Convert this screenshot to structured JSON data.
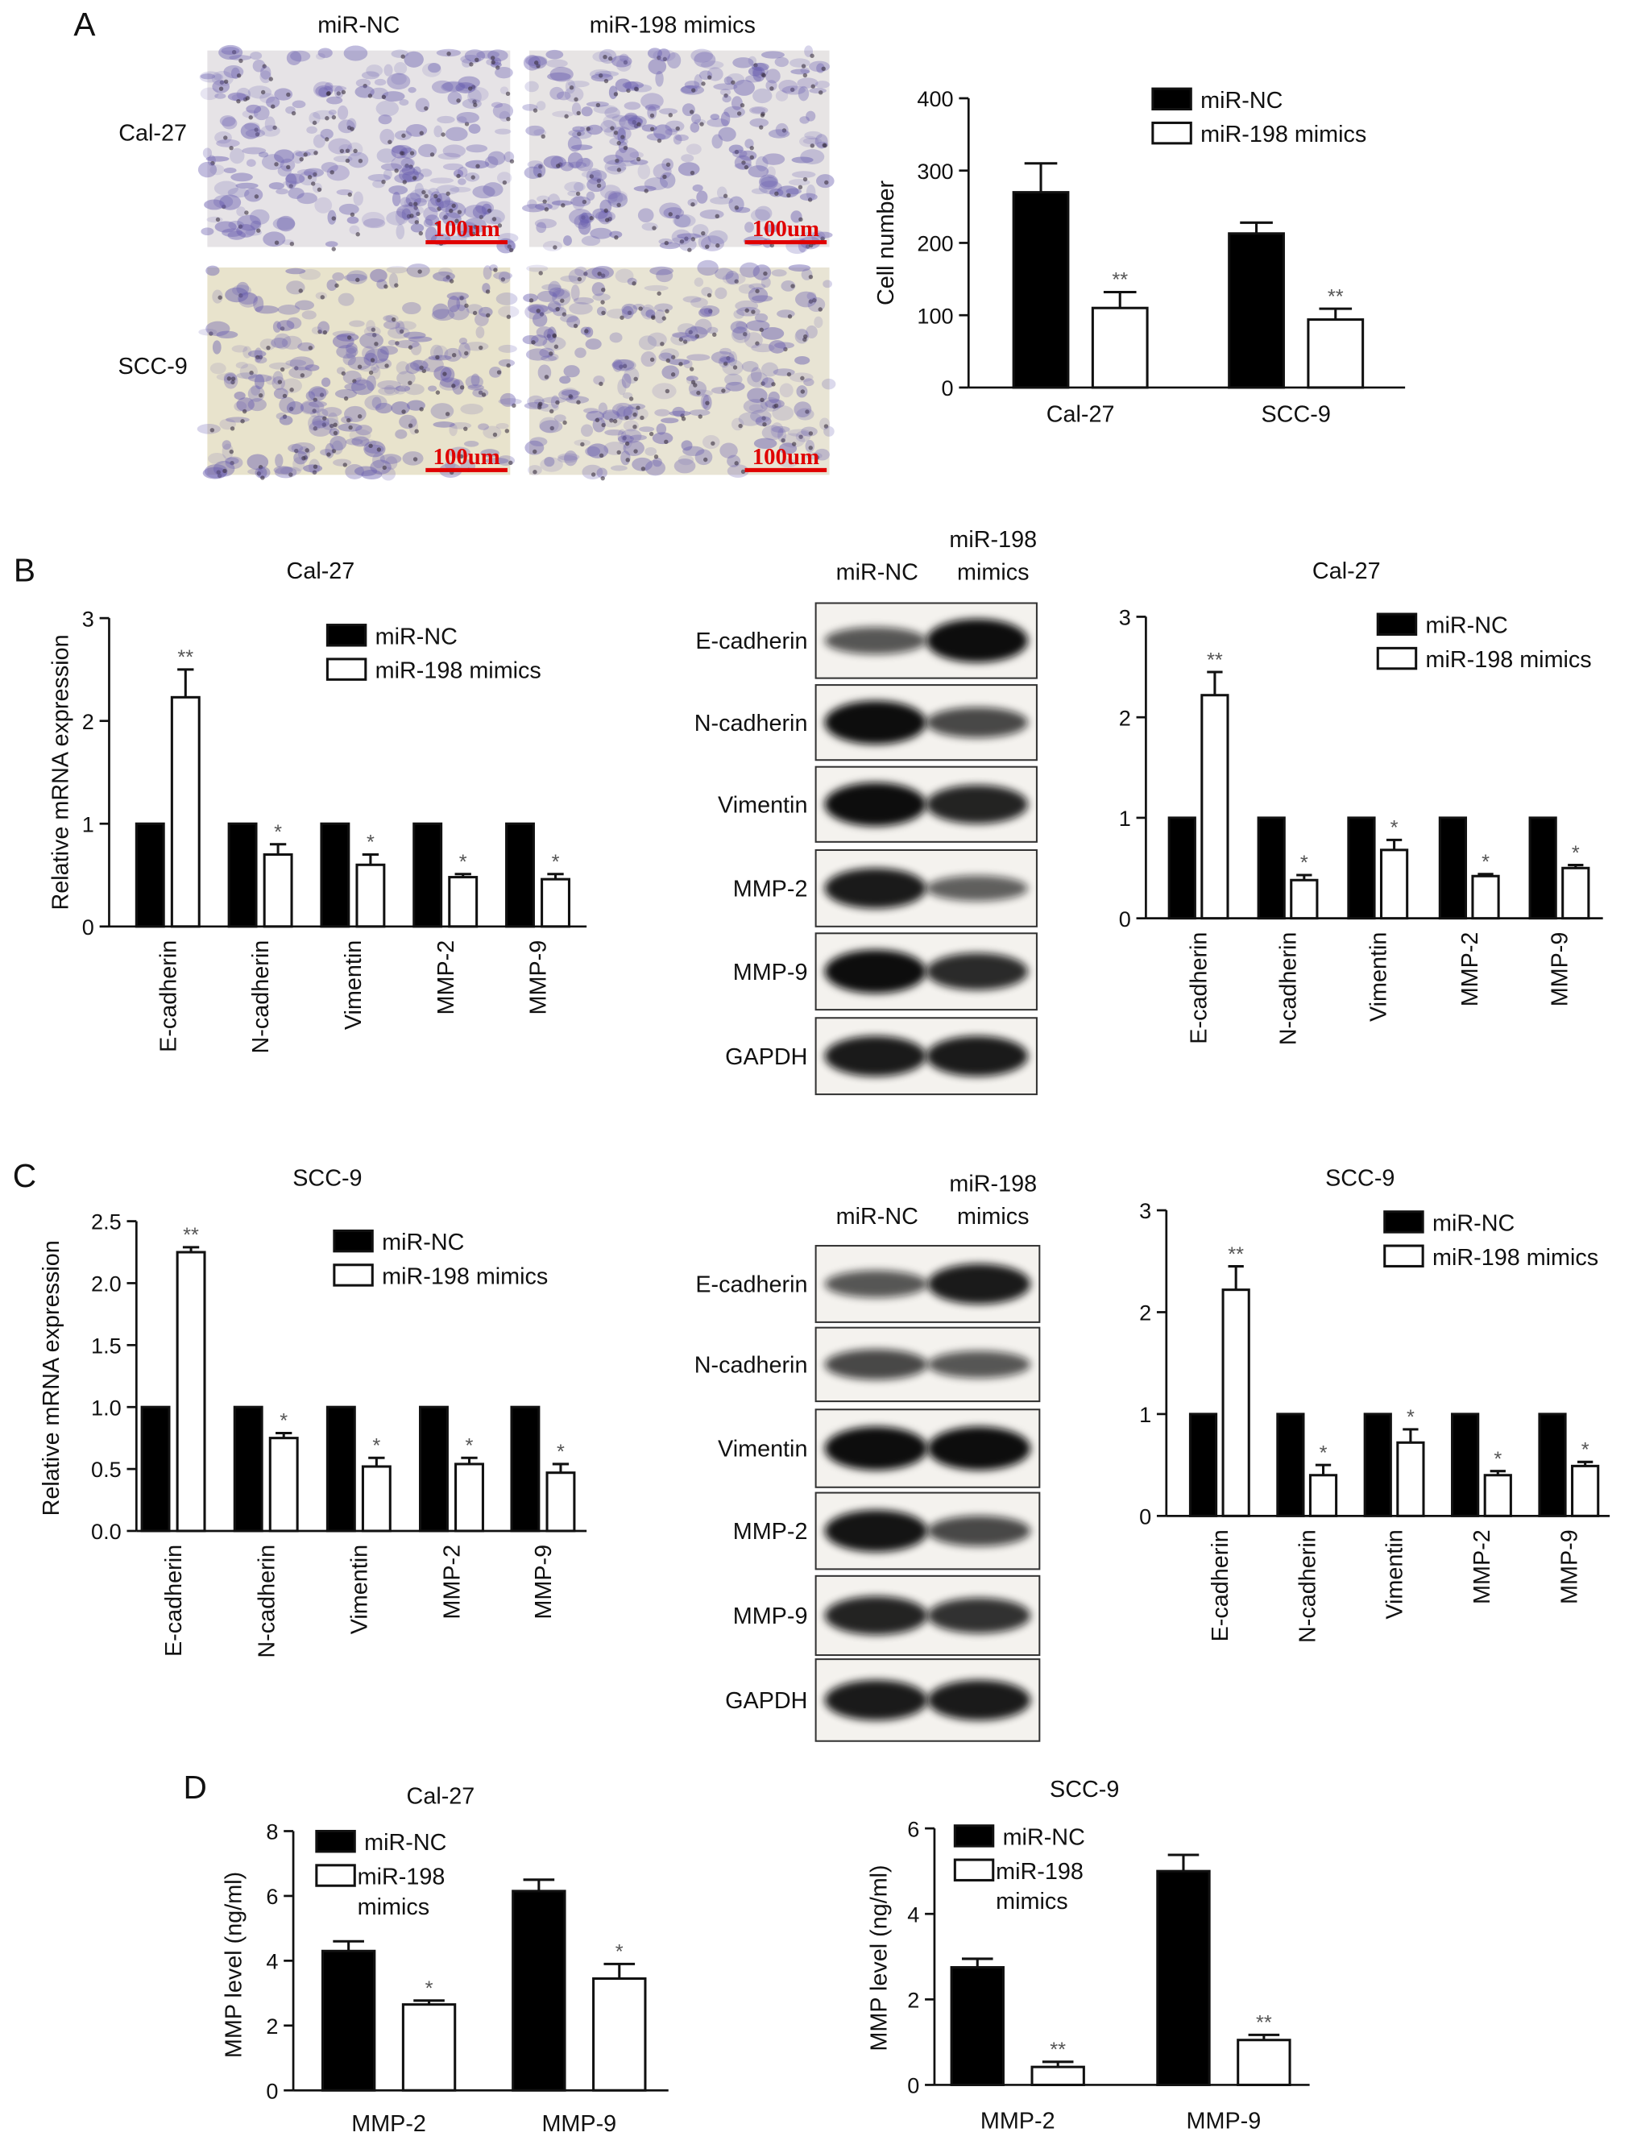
{
  "panel_labels": [
    "A",
    "B",
    "C",
    "D"
  ],
  "micrographs": {
    "columns": [
      "miR-NC",
      "miR-198 mimics"
    ],
    "rows": [
      "Cal-27",
      "SCC-9"
    ],
    "scale_bar": "100um"
  },
  "blots": [
    {
      "columns": [
        [
          "miR-NC"
        ],
        [
          "miR-198",
          "mimics"
        ]
      ],
      "rows": [
        "E-cadherin",
        "N-cadherin",
        "Vimentin",
        "MMP-2",
        "MMP-9",
        "GAPDH"
      ]
    },
    {
      "columns": [
        [
          "miR-NC"
        ],
        [
          "miR-198",
          "mimics"
        ]
      ],
      "rows": [
        "E-cadherin",
        "N-cadherin",
        "Vimentin",
        "MMP-2",
        "MMP-9",
        "GAPDH"
      ]
    }
  ],
  "chart_data": [
    {
      "type": "bar",
      "y_label": "Cell number",
      "categories": [
        "Cal-27",
        "SCC-9"
      ],
      "series": [
        {
          "name": "miR-NC",
          "color": "#000000",
          "values": [
            270,
            213
          ],
          "errors": [
            40,
            15
          ]
        },
        {
          "name": "miR-198 mimics",
          "color": "#ffffff",
          "values": [
            110,
            94
          ],
          "errors": [
            22,
            15
          ],
          "significance": [
            "**",
            "**"
          ]
        }
      ],
      "ylim": [
        0,
        400
      ],
      "yticks": [
        0,
        100,
        200,
        300,
        400
      ],
      "grid": false
    },
    {
      "type": "bar",
      "title": "Cal-27",
      "y_label": "Relative mRNA expression",
      "categories": [
        "E-cadherin",
        "N-cadherin",
        "Vimentin",
        "MMP-2",
        "MMP-9"
      ],
      "series": [
        {
          "name": "miR-NC",
          "color": "#000000",
          "values": [
            1,
            1,
            1,
            1,
            1
          ]
        },
        {
          "name": "miR-198 mimics",
          "color": "#ffffff",
          "values": [
            2.23,
            0.7,
            0.6,
            0.48,
            0.46
          ],
          "errors": [
            0.27,
            0.1,
            0.1,
            0.03,
            0.05
          ],
          "significance": [
            "**",
            "*",
            "*",
            "*",
            "*"
          ]
        }
      ],
      "ylim": [
        0,
        3
      ],
      "yticks": [
        0,
        1,
        2,
        3
      ],
      "grid": false
    },
    {
      "type": "bar",
      "title": "Cal-27",
      "categories": [
        "E-cadherin",
        "N-cadherin",
        "Vimentin",
        "MMP-2",
        "MMP-9"
      ],
      "series": [
        {
          "name": "miR-NC",
          "color": "#000000",
          "values": [
            1,
            1,
            1,
            1,
            1
          ]
        },
        {
          "name": "miR-198 mimics",
          "color": "#ffffff",
          "values": [
            2.22,
            0.38,
            0.68,
            0.42,
            0.5
          ],
          "errors": [
            0.23,
            0.05,
            0.1,
            0.02,
            0.03
          ],
          "significance": [
            "**",
            "*",
            "*",
            "*",
            "*"
          ]
        }
      ],
      "ylim": [
        0,
        3
      ],
      "yticks": [
        0,
        1,
        2,
        3
      ],
      "grid": false
    },
    {
      "type": "bar",
      "title": "SCC-9",
      "y_label": "Relative mRNA expression",
      "categories": [
        "E-cadherin",
        "N-cadherin",
        "Vimentin",
        "MMP-2",
        "MMP-9"
      ],
      "series": [
        {
          "name": "miR-NC",
          "color": "#000000",
          "values": [
            1,
            1,
            1,
            1,
            1
          ]
        },
        {
          "name": "miR-198 mimics",
          "color": "#ffffff",
          "values": [
            2.25,
            0.75,
            0.52,
            0.54,
            0.47
          ],
          "errors": [
            0.04,
            0.04,
            0.07,
            0.05,
            0.07
          ],
          "significance": [
            "**",
            "*",
            "*",
            "*",
            "*"
          ]
        }
      ],
      "ylim": [
        0,
        2.5
      ],
      "yticks": [
        {
          "value": 0,
          "label": "0.0"
        },
        {
          "value": 0.5,
          "label": "0.5"
        },
        {
          "value": 1,
          "label": "1.0"
        },
        {
          "value": 1.5,
          "label": "1.5"
        },
        {
          "value": 2,
          "label": "2.0"
        },
        {
          "value": 2.5,
          "label": "2.5"
        }
      ],
      "grid": false
    },
    {
      "type": "bar",
      "title": "SCC-9",
      "categories": [
        "E-cadherin",
        "N-cadherin",
        "Vimentin",
        "MMP-2",
        "MMP-9"
      ],
      "series": [
        {
          "name": "miR-NC",
          "color": "#000000",
          "values": [
            1,
            1,
            1,
            1,
            1
          ]
        },
        {
          "name": "miR-198 mimics",
          "color": "#ffffff",
          "values": [
            2.22,
            0.4,
            0.72,
            0.4,
            0.49
          ],
          "errors": [
            0.23,
            0.1,
            0.13,
            0.04,
            0.04
          ],
          "significance": [
            "**",
            "*",
            "*",
            "*",
            "*"
          ]
        }
      ],
      "ylim": [
        0,
        3
      ],
      "yticks": [
        0,
        1,
        2,
        3
      ],
      "grid": false
    },
    {
      "type": "bar",
      "title": "Cal-27",
      "y_label": "MMP level (ng/ml)",
      "categories": [
        "MMP-2",
        "MMP-9"
      ],
      "series": [
        {
          "name": "miR-NC",
          "color": "#000000",
          "values": [
            4.3,
            6.15
          ],
          "errors": [
            0.3,
            0.35
          ]
        },
        {
          "name": "miR-198 mimics",
          "color": "#ffffff",
          "values": [
            2.65,
            3.45
          ],
          "errors": [
            0.12,
            0.45
          ],
          "significance": [
            "*",
            "*"
          ]
        }
      ],
      "ylim": [
        0,
        8
      ],
      "yticks": [
        0,
        2,
        4,
        6,
        8
      ],
      "grid": false
    },
    {
      "type": "bar",
      "title": "SCC-9",
      "y_label": "MMP level (ng/ml)",
      "categories": [
        "MMP-2",
        "MMP-9"
      ],
      "series": [
        {
          "name": "miR-NC",
          "color": "#000000",
          "values": [
            2.75,
            5.0
          ],
          "errors": [
            0.2,
            0.38
          ]
        },
        {
          "name": "miR-198 mimics",
          "color": "#ffffff",
          "values": [
            0.42,
            1.05
          ],
          "errors": [
            0.12,
            0.12
          ],
          "significance": [
            "**",
            "**"
          ]
        }
      ],
      "ylim": [
        0,
        6
      ],
      "yticks": [
        0,
        2,
        4,
        6
      ],
      "grid": false
    }
  ]
}
